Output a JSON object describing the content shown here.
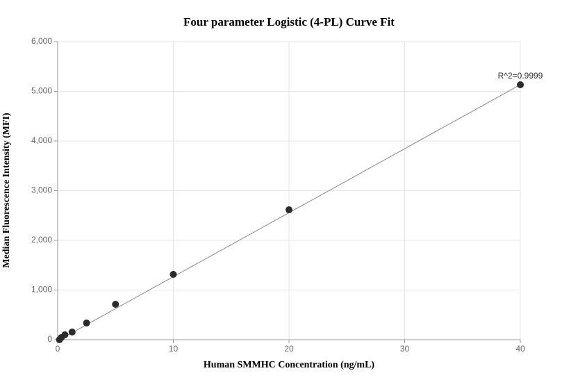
{
  "chart_data": {
    "type": "scatter",
    "title": "Four parameter Logistic (4-PL) Curve Fit",
    "x_label": "Human SMMHC Concentration (ng/mL)",
    "y_label": "Median Fluorescence Intensity (MFI)",
    "x": [
      0.156,
      0.3125,
      0.625,
      1.25,
      2.5,
      5,
      10,
      20,
      40
    ],
    "series": [
      {
        "color": "#2b2b2b",
        "values": [
          0,
          42,
          98,
          154,
          336,
          713,
          1315,
          2615,
          5133
        ]
      }
    ],
    "fit": {
      "color": "#888888",
      "x": [
        0,
        40
      ],
      "values": [
        -20,
        5133
      ]
    },
    "annotation": "R^2=0.9999",
    "xlim": [
      0,
      40
    ],
    "xticks": [
      0,
      10,
      20,
      30,
      40
    ],
    "ylim": [
      0,
      6000
    ],
    "yticks": [
      0,
      {
        "value": 1000,
        "label": "1,000"
      },
      {
        "value": 2000,
        "label": "2,000"
      },
      {
        "value": 3000,
        "label": "3,000"
      },
      {
        "value": 4000,
        "label": "4,000"
      },
      {
        "value": 5000,
        "label": "5,000"
      },
      {
        "value": 6000,
        "label": "6,000"
      }
    ],
    "grid": true
  }
}
